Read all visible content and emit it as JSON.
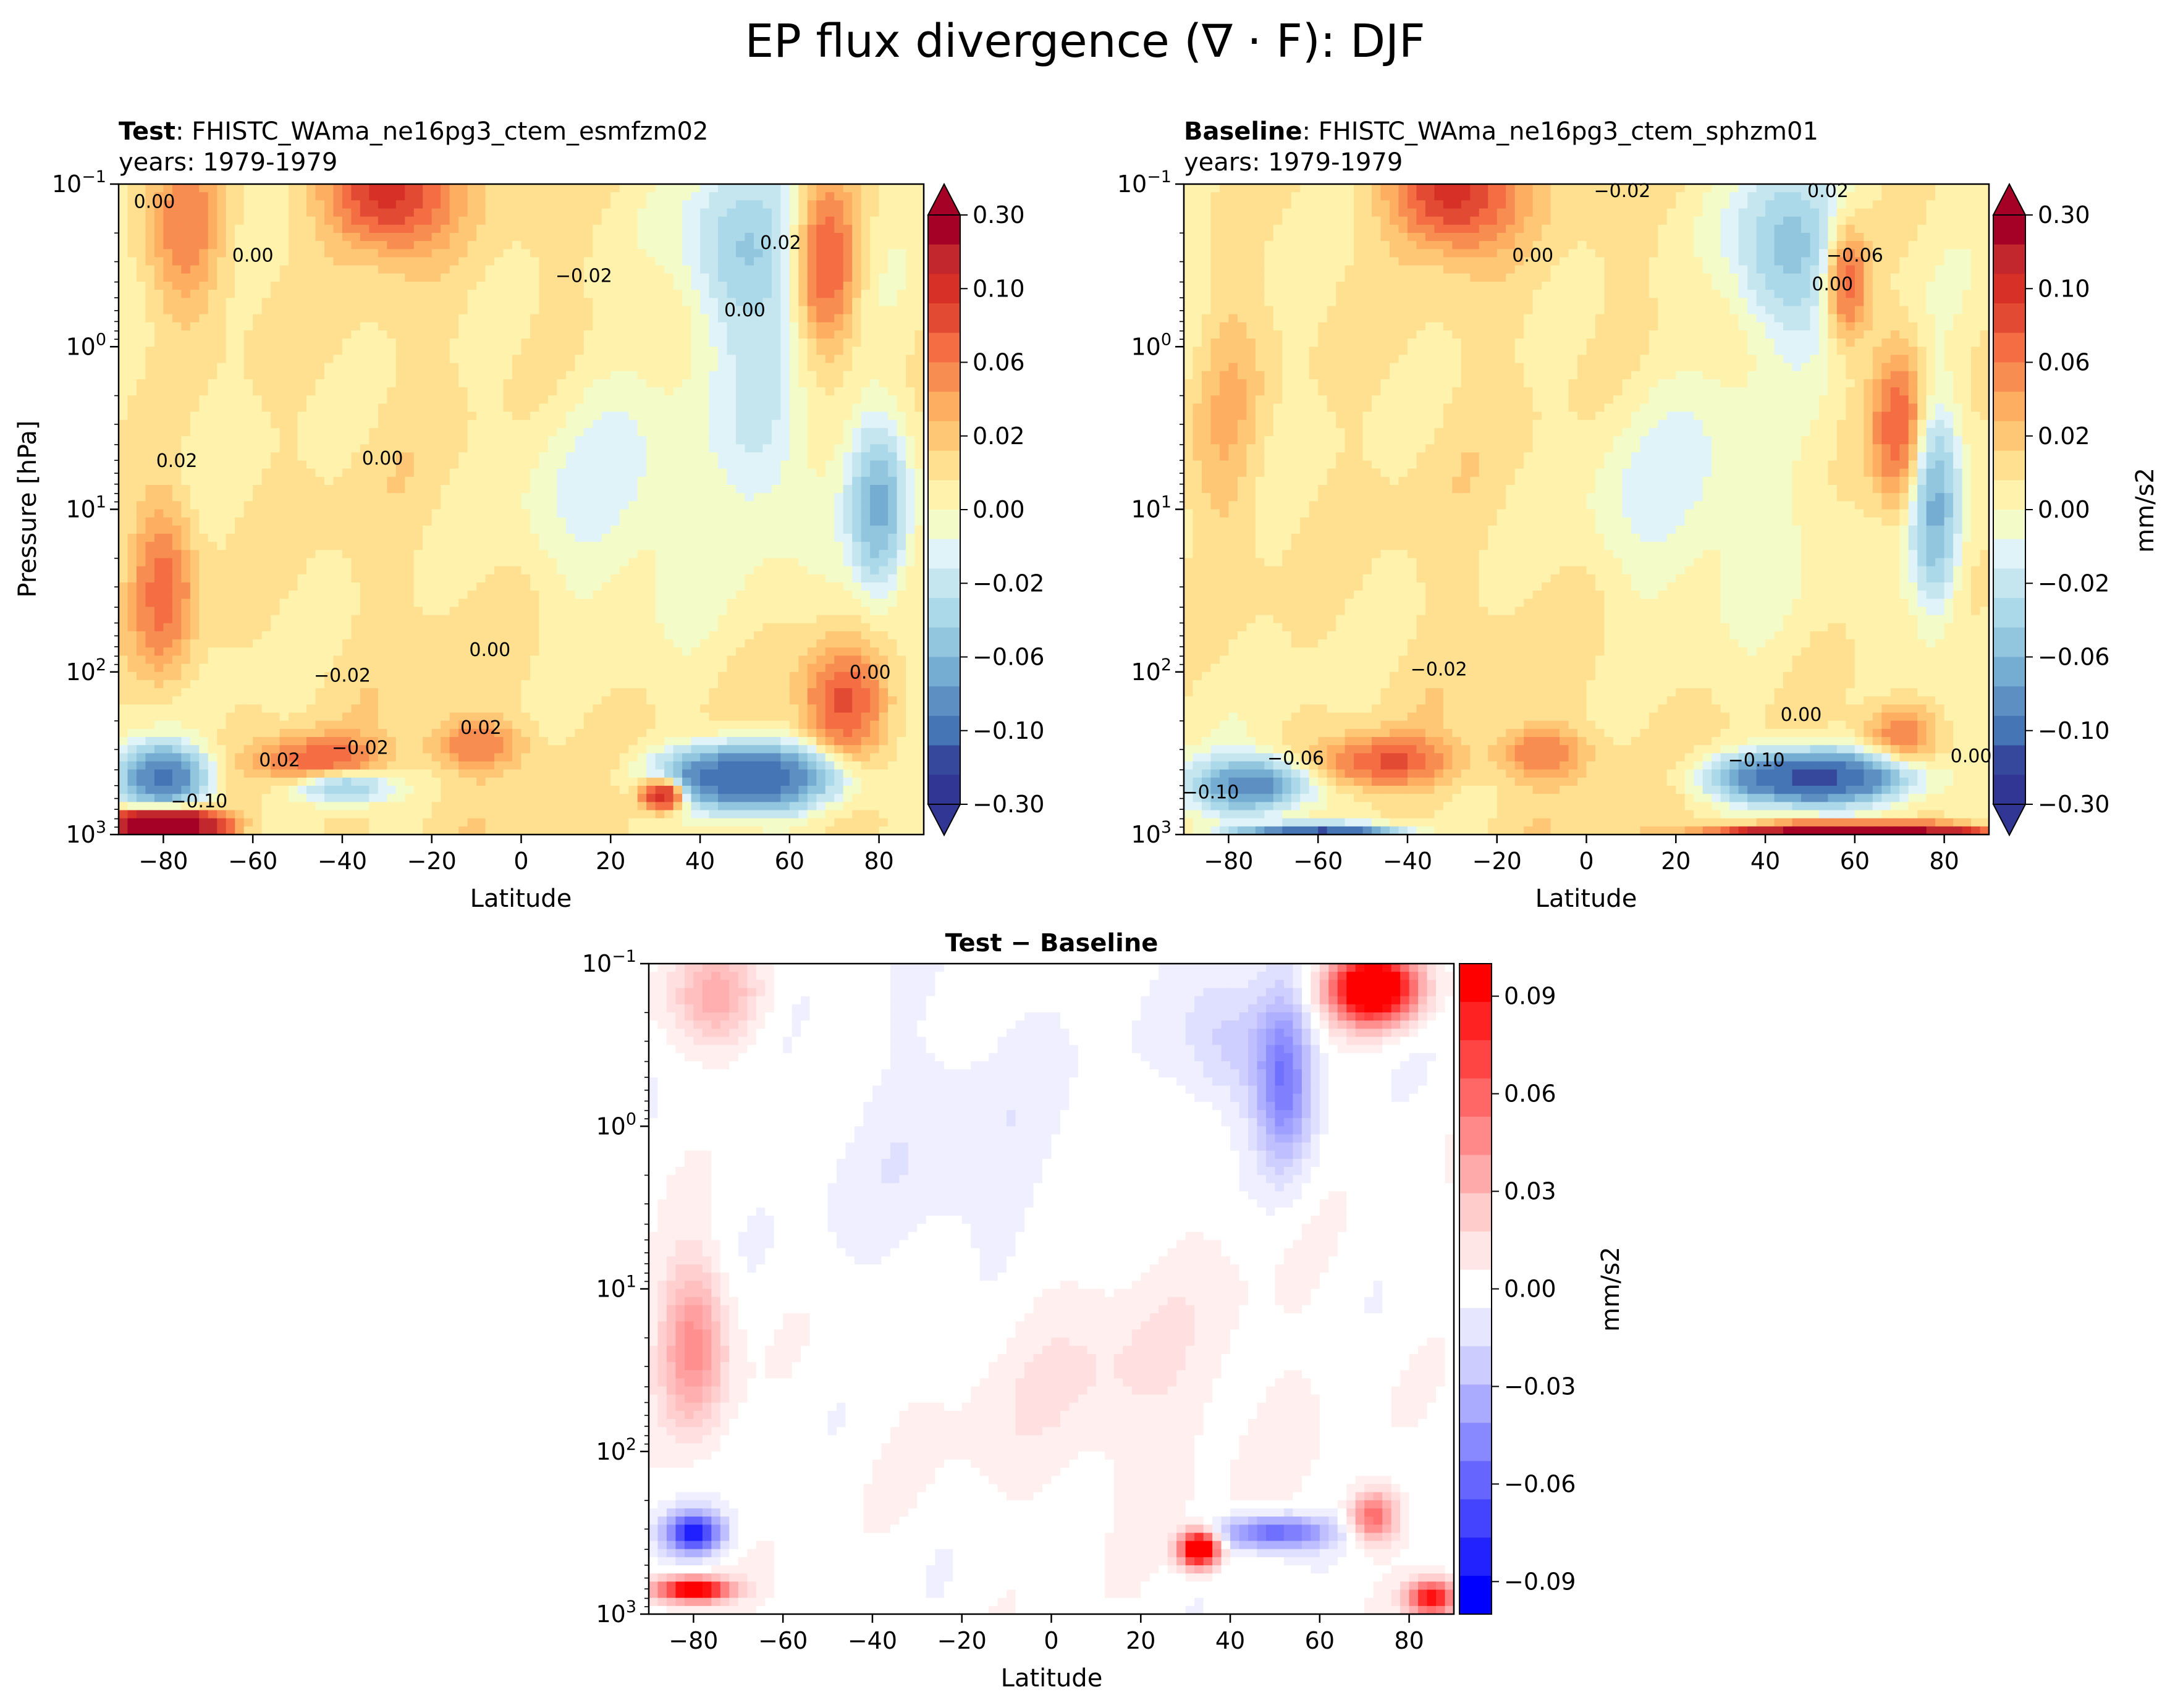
{
  "figure": {
    "suptitle": "EP flux divergence (∇ · F): DJF"
  },
  "chart_data": [
    {
      "type": "heatmap",
      "panel": "test",
      "title_bold": "Test",
      "title_rest": ": FHISTC_WAma_ne16pg3_ctem_esmfzm02",
      "subtitle": "years: 1979-1979",
      "xlabel": "Latitude",
      "ylabel": "Pressure [hPa]",
      "x_ticks": [
        "−80",
        "−60",
        "−40",
        "−20",
        "0",
        "20",
        "40",
        "60",
        "80"
      ],
      "x_tick_values": [
        -80,
        -60,
        -40,
        -20,
        0,
        20,
        40,
        60,
        80
      ],
      "xlim": [
        -90,
        90
      ],
      "yscale": "log",
      "ylim": [
        1000,
        0.1
      ],
      "y_ticks": [
        {
          "base": "10",
          "exp": "−1"
        },
        {
          "base": "10",
          "exp": "0"
        },
        {
          "base": "10",
          "exp": "1"
        },
        {
          "base": "10",
          "exp": "2"
        },
        {
          "base": "10",
          "exp": "3"
        }
      ],
      "y_tick_values": [
        0.1,
        1,
        10,
        100,
        1000
      ],
      "contour_labels": [
        {
          "text": "0.00",
          "x": -82,
          "p": 0.14
        },
        {
          "text": "0.00",
          "x": -60,
          "p": 0.3
        },
        {
          "text": "−0.02",
          "x": 14,
          "p": 0.4
        },
        {
          "text": "0.00",
          "x": 50,
          "p": 0.65
        },
        {
          "text": "0.02",
          "x": 58,
          "p": 0.25
        },
        {
          "text": "0.02",
          "x": -77,
          "p": 5.5
        },
        {
          "text": "0.00",
          "x": -31,
          "p": 5.3
        },
        {
          "text": "0.00",
          "x": -7,
          "p": 80
        },
        {
          "text": "−0.02",
          "x": -40,
          "p": 115
        },
        {
          "text": "0.02",
          "x": -9,
          "p": 240
        },
        {
          "text": "−0.02",
          "x": -36,
          "p": 320
        },
        {
          "text": "0.02",
          "x": -54,
          "p": 380
        },
        {
          "text": "−0.10",
          "x": -72,
          "p": 680
        },
        {
          "text": "0.00",
          "x": 78,
          "p": 110
        }
      ],
      "colorbar": {
        "ticks": [
          "0.30",
          "0.10",
          "0.06",
          "0.02",
          "0.00",
          "−0.02",
          "−0.06",
          "−0.10",
          "−0.30"
        ],
        "colors": [
          "#a50026",
          "#c1272d",
          "#d73027",
          "#e34a33",
          "#f46d43",
          "#f88d52",
          "#fdae61",
          "#fdc776",
          "#fee090",
          "#fff2ac",
          "#f3fbc8",
          "#e0f3f8",
          "#c6e6ef",
          "#abd9e9",
          "#92c5de",
          "#74add1",
          "#5d8fc2",
          "#4575b4",
          "#36489c",
          "#313695"
        ],
        "extend": "both"
      }
    },
    {
      "type": "heatmap",
      "panel": "baseline",
      "title_bold": "Baseline",
      "title_rest": ": FHISTC_WAma_ne16pg3_ctem_sphzm01",
      "subtitle": "years: 1979-1979",
      "xlabel": "Latitude",
      "x_ticks": [
        "−80",
        "−60",
        "−40",
        "−20",
        "0",
        "20",
        "40",
        "60",
        "80"
      ],
      "x_tick_values": [
        -80,
        -60,
        -40,
        -20,
        0,
        20,
        40,
        60,
        80
      ],
      "xlim": [
        -90,
        90
      ],
      "yscale": "log",
      "ylim": [
        1000,
        0.1
      ],
      "y_ticks": [
        {
          "base": "10",
          "exp": "−1"
        },
        {
          "base": "10",
          "exp": "0"
        },
        {
          "base": "10",
          "exp": "1"
        },
        {
          "base": "10",
          "exp": "2"
        },
        {
          "base": "10",
          "exp": "3"
        }
      ],
      "y_tick_values": [
        0.1,
        1,
        10,
        100,
        1000
      ],
      "contour_labels": [
        {
          "text": "−0.02",
          "x": 8,
          "p": 0.12
        },
        {
          "text": "0.02",
          "x": 54,
          "p": 0.12
        },
        {
          "text": "−0.06",
          "x": 60,
          "p": 0.3
        },
        {
          "text": "0.00",
          "x": 55,
          "p": 0.45
        },
        {
          "text": "0.00",
          "x": -12,
          "p": 0.3
        },
        {
          "text": "−0.02",
          "x": -33,
          "p": 105
        },
        {
          "text": "0.00",
          "x": 48,
          "p": 200
        },
        {
          "text": "−0.06",
          "x": -65,
          "p": 370
        },
        {
          "text": "−0.10",
          "x": -84,
          "p": 600
        },
        {
          "text": "−0.10",
          "x": 38,
          "p": 380
        },
        {
          "text": "0.00",
          "x": 86,
          "p": 360
        }
      ],
      "colorbar": {
        "ticks": [
          "0.30",
          "0.10",
          "0.06",
          "0.02",
          "0.00",
          "−0.02",
          "−0.06",
          "−0.10",
          "−0.30"
        ],
        "label": "mm/s2",
        "extend": "both"
      }
    },
    {
      "type": "heatmap",
      "panel": "difference",
      "title_bold": "Test − Baseline",
      "xlabel": "Latitude",
      "x_ticks": [
        "−80",
        "−60",
        "−40",
        "−20",
        "0",
        "20",
        "40",
        "60",
        "80"
      ],
      "x_tick_values": [
        -80,
        -60,
        -40,
        -20,
        0,
        20,
        40,
        60,
        80
      ],
      "xlim": [
        -90,
        90
      ],
      "yscale": "log",
      "ylim": [
        1000,
        0.1
      ],
      "y_ticks": [
        {
          "base": "10",
          "exp": "−1"
        },
        {
          "base": "10",
          "exp": "0"
        },
        {
          "base": "10",
          "exp": "1"
        },
        {
          "base": "10",
          "exp": "2"
        },
        {
          "base": "10",
          "exp": "3"
        }
      ],
      "y_tick_values": [
        0.1,
        1,
        10,
        100,
        1000
      ],
      "colorbar": {
        "ticks": [
          "0.09",
          "0.06",
          "0.03",
          "0.00",
          "−0.03",
          "−0.06",
          "−0.09"
        ],
        "tick_values": [
          0.09,
          0.06,
          0.03,
          0.0,
          -0.03,
          -0.06,
          -0.09
        ],
        "range": [
          -0.1,
          0.1
        ],
        "label": "mm/s2",
        "colors": [
          "#ff0000",
          "#ff2222",
          "#ff4444",
          "#ff6666",
          "#ff8888",
          "#ffaaaa",
          "#ffcccc",
          "#ffe6e6",
          "#ffffff",
          "#e6e6ff",
          "#ccccff",
          "#aaaaff",
          "#8888ff",
          "#6666ff",
          "#4444ff",
          "#2222ff",
          "#0000ff"
        ]
      }
    }
  ]
}
